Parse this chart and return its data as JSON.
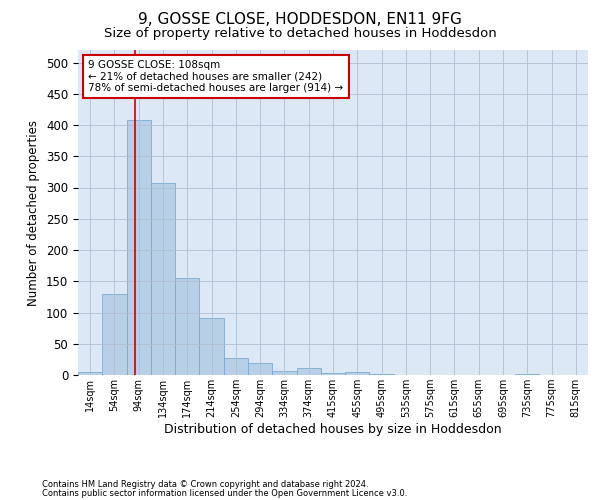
{
  "title": "9, GOSSE CLOSE, HODDESDON, EN11 9FG",
  "subtitle": "Size of property relative to detached houses in Hoddesdon",
  "xlabel": "Distribution of detached houses by size in Hoddesdon",
  "ylabel": "Number of detached properties",
  "footer_line1": "Contains HM Land Registry data © Crown copyright and database right 2024.",
  "footer_line2": "Contains public sector information licensed under the Open Government Licence v3.0.",
  "bar_labels": [
    "14sqm",
    "54sqm",
    "94sqm",
    "134sqm",
    "174sqm",
    "214sqm",
    "254sqm",
    "294sqm",
    "334sqm",
    "374sqm",
    "415sqm",
    "455sqm",
    "495sqm",
    "535sqm",
    "575sqm",
    "615sqm",
    "655sqm",
    "695sqm",
    "735sqm",
    "775sqm",
    "815sqm"
  ],
  "bar_values": [
    5,
    130,
    408,
    308,
    155,
    92,
    28,
    20,
    7,
    11,
    3,
    5,
    1,
    0,
    0,
    0,
    0,
    0,
    1,
    0,
    0
  ],
  "bar_color": "#b8cfe8",
  "bar_edge_color": "#7aaad0",
  "ylim": [
    0,
    520
  ],
  "yticks": [
    0,
    50,
    100,
    150,
    200,
    250,
    300,
    350,
    400,
    450,
    500
  ],
  "subject_line_color": "#cc0000",
  "annotation_text": "9 GOSSE CLOSE: 108sqm\n← 21% of detached houses are smaller (242)\n78% of semi-detached houses are larger (914) →",
  "annotation_box_color": "#ffffff",
  "annotation_box_edge_color": "#cc0000",
  "background_color": "#ffffff",
  "plot_bg_color": "#dce8f5",
  "grid_color": "#b0bfd0",
  "title_fontsize": 11,
  "subtitle_fontsize": 9.5
}
